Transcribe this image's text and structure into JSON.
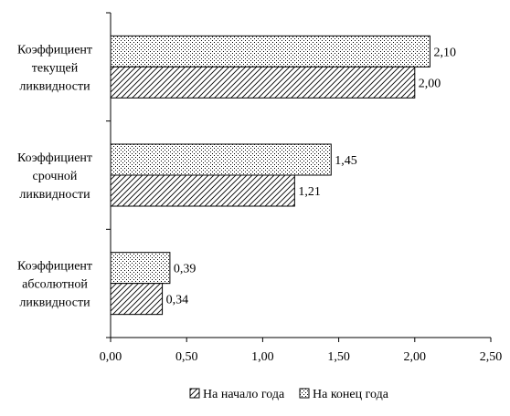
{
  "chart_data": {
    "type": "bar",
    "orientation": "horizontal",
    "categories": [
      [
        "Коэффициент",
        "текущей",
        "ликвидности"
      ],
      [
        "Коэффициент",
        "срочной",
        "ликвидности"
      ],
      [
        "Коэффициент",
        "абсолютной",
        "ликвидности"
      ]
    ],
    "series": [
      {
        "name": "На начало года",
        "values": [
          2.0,
          1.21,
          0.34
        ],
        "value_labels": [
          "2,00",
          "1,21",
          "0,34"
        ],
        "pattern": "diagonal-hatch"
      },
      {
        "name": "На конец года",
        "values": [
          2.1,
          1.45,
          0.39
        ],
        "value_labels": [
          "2,10",
          "1,45",
          "0,39"
        ],
        "pattern": "dots"
      }
    ],
    "xlim": [
      0,
      2.5
    ],
    "xticks": [
      0,
      0.5,
      1,
      1.5,
      2,
      2.5
    ],
    "xtick_labels": [
      "0,00",
      "0,50",
      "1,00",
      "1,50",
      "2,00",
      "2,50"
    ],
    "grid": false,
    "legend_position": "bottom",
    "title": "",
    "xlabel": "",
    "ylabel": ""
  }
}
